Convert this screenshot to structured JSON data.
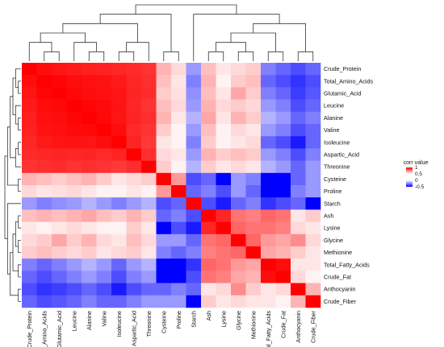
{
  "chart_data": {
    "type": "heatmap",
    "title": "",
    "xlabel": "",
    "ylabel": "",
    "variables": [
      "Crude_Protein",
      "Total_Amino_Acids",
      "Glutamic_Acid",
      "Leucine",
      "Alanine",
      "Valine",
      "Isoleucine",
      "Aspartic_Acid",
      "Threonine",
      "Cysteine",
      "Proline",
      "Starch",
      "Ash",
      "Lysine",
      "Glycine",
      "Methionine",
      "Total_Fatty_Acids",
      "Crude_Fat",
      "Anthocyanin",
      "Crude_Fiber"
    ],
    "row_labels": [
      "Crude_Protein",
      "Total_Amino_Acids",
      "Glutamic_Acid",
      "Leucine",
      "Alanine",
      "Valine",
      "Isoleucine",
      "Aspartic_Acid",
      "Threonine",
      "Cysteine",
      "Proline",
      "Starch",
      "Ash",
      "Lysine",
      "Glycine",
      "Methionine",
      "Total_Fatty_Acids",
      "Crude_Fat",
      "Anthocyanin",
      "Crude_Fiber"
    ],
    "col_labels": [
      "Crude_Protein",
      "Total_Amino_Acids",
      "Glutamic_Acid",
      "Leucine",
      "Alanine",
      "Valine",
      "Isoleucine",
      "Aspartic_Acid",
      "Threonine",
      "Cysteine",
      "Proline",
      "Starch",
      "Ash",
      "Lysine",
      "Glycine",
      "Methionine",
      "Total_Fatty_Acids",
      "Crude_Fat",
      "Anthocyanin",
      "Crude_Fiber"
    ],
    "values": [
      [
        1.0,
        0.95,
        0.92,
        0.9,
        0.88,
        0.87,
        0.85,
        0.83,
        0.8,
        0.3,
        0.15,
        -0.2,
        0.25,
        0.1,
        0.15,
        0.2,
        -0.25,
        -0.3,
        -0.35,
        -0.3
      ],
      [
        0.95,
        1.0,
        0.98,
        0.95,
        0.94,
        0.93,
        0.9,
        0.85,
        0.82,
        0.25,
        0.1,
        -0.25,
        0.3,
        0.05,
        0.2,
        0.25,
        -0.3,
        -0.35,
        -0.4,
        -0.35
      ],
      [
        0.92,
        0.98,
        1.0,
        0.97,
        0.95,
        0.94,
        0.92,
        0.86,
        0.83,
        0.2,
        0.12,
        -0.22,
        0.25,
        0.1,
        0.35,
        0.2,
        -0.25,
        -0.3,
        -0.38,
        -0.33
      ],
      [
        0.9,
        0.95,
        0.97,
        1.0,
        0.98,
        0.96,
        0.93,
        0.85,
        0.8,
        0.25,
        0.15,
        -0.2,
        0.3,
        0.15,
        0.2,
        0.15,
        -0.2,
        -0.25,
        -0.35,
        -0.3
      ],
      [
        0.88,
        0.94,
        0.95,
        0.98,
        1.0,
        0.97,
        0.92,
        0.86,
        0.82,
        0.3,
        0.1,
        -0.15,
        0.35,
        0.1,
        0.3,
        0.2,
        -0.15,
        -0.2,
        -0.3,
        -0.25
      ],
      [
        0.87,
        0.93,
        0.94,
        0.96,
        0.97,
        1.0,
        0.95,
        0.84,
        0.8,
        0.2,
        0.05,
        -0.2,
        0.25,
        0.05,
        0.15,
        0.1,
        -0.2,
        -0.25,
        -0.35,
        -0.3
      ],
      [
        0.85,
        0.9,
        0.92,
        0.93,
        0.92,
        0.95,
        1.0,
        0.86,
        0.78,
        0.1,
        0.05,
        -0.25,
        0.2,
        0.05,
        0.1,
        0.15,
        -0.3,
        -0.35,
        -0.45,
        -0.3
      ],
      [
        0.83,
        0.85,
        0.86,
        0.85,
        0.86,
        0.84,
        0.86,
        1.0,
        0.82,
        0.15,
        0.1,
        -0.2,
        0.3,
        0.2,
        0.25,
        0.2,
        -0.2,
        -0.25,
        -0.35,
        -0.25
      ],
      [
        0.8,
        0.82,
        0.83,
        0.8,
        0.82,
        0.8,
        0.78,
        0.82,
        1.0,
        0.2,
        0.05,
        -0.15,
        0.2,
        0.1,
        0.15,
        0.1,
        -0.15,
        -0.2,
        -0.3,
        -0.2
      ],
      [
        0.3,
        0.25,
        0.2,
        0.25,
        0.3,
        0.2,
        0.1,
        0.15,
        0.2,
        1.0,
        0.4,
        -0.35,
        -0.3,
        -0.55,
        -0.2,
        -0.25,
        -0.7,
        -0.6,
        -0.3,
        -0.2
      ],
      [
        0.15,
        0.1,
        0.12,
        0.15,
        0.1,
        0.05,
        0.05,
        0.1,
        0.05,
        0.4,
        1.0,
        -0.3,
        -0.25,
        -0.35,
        -0.2,
        -0.3,
        -0.75,
        -0.7,
        -0.25,
        -0.2
      ],
      [
        -0.2,
        -0.25,
        -0.22,
        -0.2,
        -0.15,
        -0.2,
        -0.25,
        -0.2,
        -0.15,
        -0.35,
        -0.3,
        1.0,
        -0.35,
        -0.45,
        -0.3,
        -0.25,
        -0.4,
        -0.35,
        -0.3,
        -0.75
      ],
      [
        0.25,
        0.3,
        0.25,
        0.3,
        0.35,
        0.25,
        0.2,
        0.3,
        0.2,
        -0.3,
        -0.25,
        -0.35,
        1.0,
        0.85,
        0.55,
        0.5,
        0.6,
        0.55,
        0.1,
        0.2
      ],
      [
        0.1,
        0.05,
        0.1,
        0.15,
        0.1,
        0.05,
        0.05,
        0.2,
        0.1,
        -0.55,
        -0.35,
        -0.45,
        0.85,
        1.0,
        0.6,
        0.55,
        0.55,
        0.5,
        0.15,
        0.1
      ],
      [
        0.15,
        0.2,
        0.35,
        0.2,
        0.3,
        0.15,
        0.1,
        0.25,
        0.15,
        -0.2,
        -0.2,
        -0.3,
        0.55,
        0.6,
        1.0,
        0.6,
        0.4,
        0.35,
        0.45,
        0.15
      ],
      [
        0.2,
        0.25,
        0.2,
        0.15,
        0.2,
        0.1,
        0.15,
        0.2,
        0.1,
        -0.25,
        -0.3,
        -0.25,
        0.5,
        0.55,
        0.6,
        1.0,
        0.35,
        0.3,
        0.2,
        0.1
      ],
      [
        -0.25,
        -0.3,
        -0.25,
        -0.2,
        -0.15,
        -0.2,
        -0.3,
        -0.2,
        -0.15,
        -0.7,
        -0.75,
        -0.4,
        0.6,
        0.55,
        0.4,
        0.35,
        1.0,
        0.95,
        0.1,
        0.1
      ],
      [
        -0.3,
        -0.35,
        -0.3,
        -0.25,
        -0.2,
        -0.25,
        -0.35,
        -0.25,
        -0.2,
        -0.6,
        -0.7,
        -0.35,
        0.55,
        0.5,
        0.35,
        0.3,
        0.95,
        1.0,
        0.15,
        0.05
      ],
      [
        -0.35,
        -0.4,
        -0.38,
        -0.35,
        -0.3,
        -0.35,
        -0.45,
        -0.35,
        -0.3,
        -0.3,
        -0.25,
        -0.3,
        0.1,
        0.15,
        0.45,
        0.2,
        0.1,
        0.15,
        1.0,
        0.3
      ],
      [
        -0.3,
        -0.35,
        -0.33,
        -0.3,
        -0.25,
        -0.3,
        -0.3,
        -0.25,
        -0.2,
        -0.2,
        -0.2,
        -0.75,
        0.2,
        0.1,
        0.15,
        0.1,
        0.1,
        0.05,
        0.3,
        1.0
      ]
    ],
    "color_scale": {
      "min": -0.5,
      "max": 1,
      "low_color": "#0000ff",
      "mid_color": "#ffffff",
      "high_color": "#ff0000"
    },
    "legend": {
      "title": "corr value",
      "ticks": [
        "1",
        "0.5",
        "0",
        "-0.5"
      ],
      "tick_values": [
        1,
        0.5,
        0,
        -0.5
      ],
      "placement": "right"
    },
    "dendrogram": {
      "shown": true,
      "sides": [
        "top",
        "left"
      ]
    }
  }
}
